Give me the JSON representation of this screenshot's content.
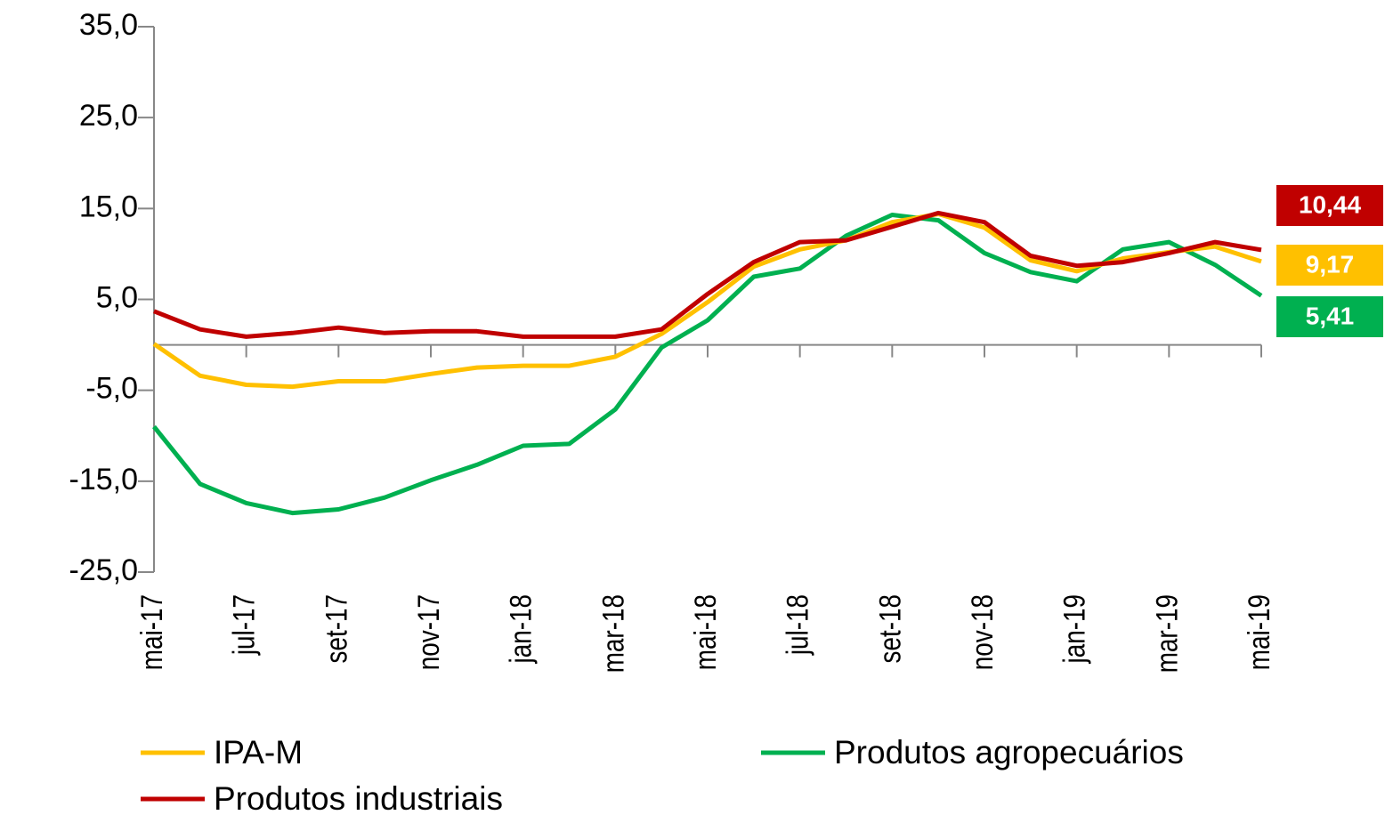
{
  "chart_data": {
    "type": "line",
    "categories": [
      "mai-17",
      null,
      "jul-17",
      null,
      "set-17",
      null,
      "nov-17",
      null,
      "jan-18",
      null,
      "mar-18",
      null,
      "mai-18",
      null,
      "jul-18",
      null,
      "set-18",
      null,
      "nov-18",
      null,
      "jan-19",
      null,
      "mar-19",
      null,
      "mai-19"
    ],
    "series": [
      {
        "name": "IPA-M",
        "color": "#ffc000",
        "values": [
          0.1,
          -3.4,
          -4.4,
          -4.6,
          -4.0,
          -4.0,
          -3.2,
          -2.5,
          -2.3,
          -2.3,
          -1.3,
          1.2,
          4.7,
          8.6,
          10.5,
          11.5,
          13.5,
          14.4,
          12.9,
          9.3,
          8.1,
          9.5,
          10.2,
          10.8,
          9.17
        ],
        "value_labels": [
          null,
          null,
          null,
          null,
          null,
          null,
          null,
          null,
          null,
          null,
          null,
          null,
          null,
          null,
          null,
          null,
          null,
          null,
          null,
          null,
          null,
          null,
          null,
          null,
          "9,17"
        ]
      },
      {
        "name": "Produtos agropecuários",
        "color": "#00b050",
        "values": [
          -9.0,
          -15.3,
          -17.4,
          -18.5,
          -18.1,
          -16.8,
          -14.9,
          -13.2,
          -11.1,
          -10.9,
          -7.1,
          -0.3,
          2.7,
          7.5,
          8.4,
          12.0,
          14.3,
          13.7,
          10.1,
          8.0,
          7.0,
          10.5,
          11.3,
          8.8,
          5.41
        ],
        "value_labels": [
          null,
          null,
          null,
          null,
          null,
          null,
          null,
          null,
          null,
          null,
          null,
          null,
          null,
          null,
          null,
          null,
          null,
          null,
          null,
          null,
          null,
          null,
          null,
          null,
          "5,41"
        ]
      },
      {
        "name": "Produtos industriais",
        "color": "#c00000",
        "values": [
          3.7,
          1.7,
          0.9,
          1.3,
          1.9,
          1.3,
          1.5,
          1.5,
          0.9,
          0.9,
          0.9,
          1.7,
          5.6,
          9.1,
          11.3,
          11.5,
          13.0,
          14.5,
          13.5,
          9.8,
          8.7,
          9.1,
          10.1,
          11.3,
          10.44
        ],
        "value_labels": [
          null,
          null,
          null,
          null,
          null,
          null,
          null,
          null,
          null,
          null,
          null,
          null,
          null,
          null,
          null,
          null,
          null,
          null,
          null,
          null,
          null,
          null,
          null,
          null,
          "10,44"
        ]
      }
    ],
    "ylim": [
      -25,
      35
    ],
    "yticks": [
      {
        "value": -25,
        "label": "-25,0"
      },
      {
        "value": -15,
        "label": "-15,0"
      },
      {
        "value": -5,
        "label": "-5,0"
      },
      {
        "value": 5,
        "label": "5,0"
      },
      {
        "value": 15,
        "label": "15,0"
      },
      {
        "value": 25,
        "label": "25,0"
      },
      {
        "value": 35,
        "label": "35,0"
      }
    ],
    "grid": false,
    "legend": "bottom"
  }
}
